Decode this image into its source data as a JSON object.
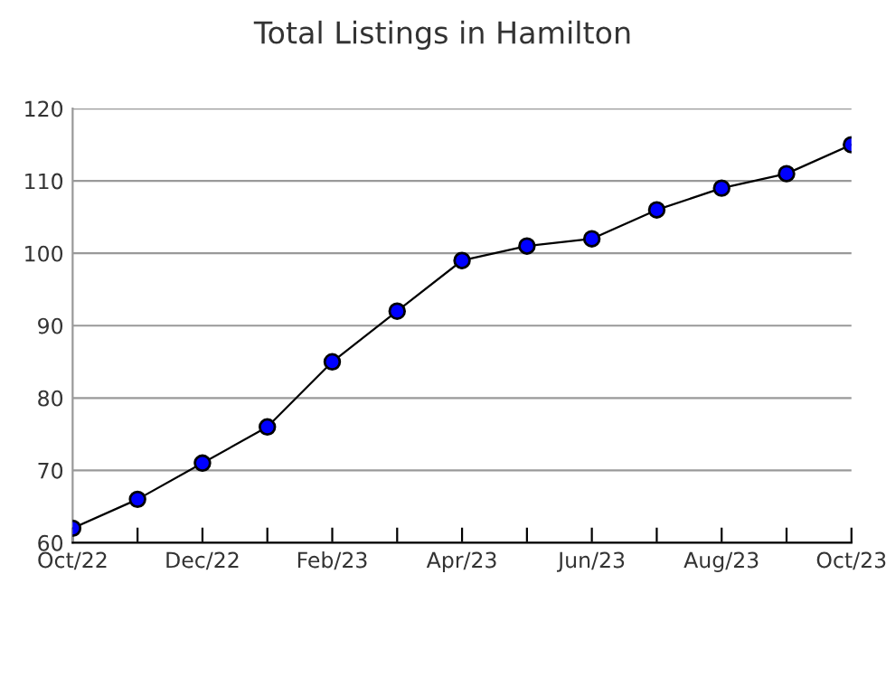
{
  "chart_data": {
    "type": "line",
    "title": "Total Listings in Hamilton",
    "categories": [
      "Oct/22",
      null,
      "Dec/22",
      null,
      "Feb/23",
      null,
      "Apr/23",
      null,
      "Jun/23",
      null,
      "Aug/23",
      null,
      "Oct/23"
    ],
    "series": [
      {
        "color": "#0000ff",
        "values": [
          62,
          66,
          71,
          76,
          85,
          92,
          99,
          101,
          102,
          106,
          109,
          111,
          115
        ]
      }
    ],
    "ylim": [
      60,
      120
    ],
    "yticks": [
      60,
      70,
      80,
      90,
      100,
      110,
      120
    ],
    "grid": "y",
    "marker": "circle",
    "line_style": "solid"
  }
}
